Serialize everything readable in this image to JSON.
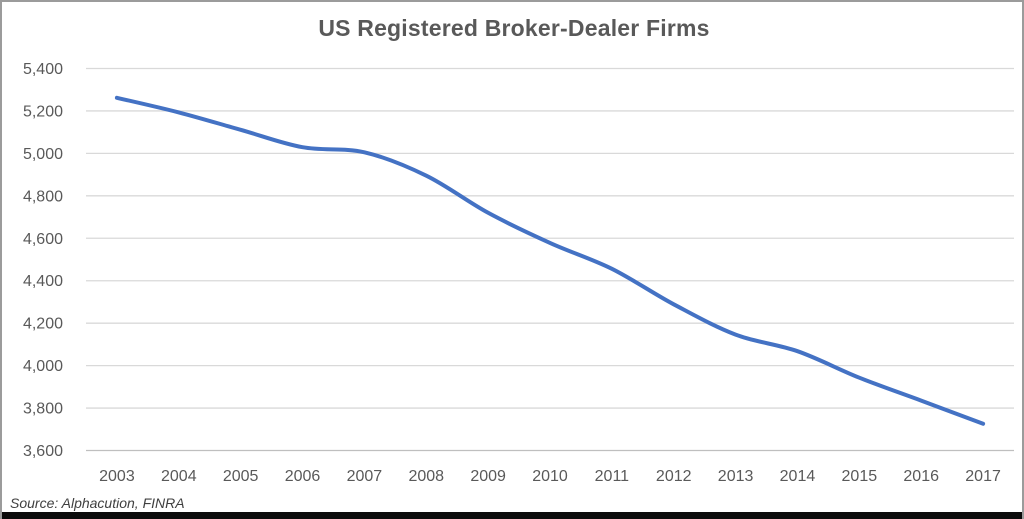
{
  "chart_data": {
    "type": "line",
    "title": "US Registered Broker-Dealer Firms",
    "categories": [
      "2003",
      "2004",
      "2005",
      "2006",
      "2007",
      "2008",
      "2009",
      "2010",
      "2011",
      "2012",
      "2013",
      "2014",
      "2015",
      "2016",
      "2017"
    ],
    "series": [
      {
        "name": "US Registered Broker-Dealer Firms",
        "values": [
          5262,
          5193,
          5111,
          5029,
          5005,
          4895,
          4720,
          4578,
          4456,
          4289,
          4146,
          4068,
          3943,
          3835,
          3726
        ]
      }
    ],
    "xlabel": "",
    "ylabel": "",
    "ylim": [
      3600,
      5400
    ],
    "ytick_interval": 200,
    "ytick_labels": [
      "3,600",
      "3,800",
      "4,000",
      "4,200",
      "4,400",
      "4,600",
      "4,800",
      "5,000",
      "5,200",
      "5,400"
    ],
    "grid": true,
    "legend_position": "none",
    "line_smoothed": true,
    "source": "Source: Alphacution, FINRA",
    "colors": {
      "line": "#4472C4",
      "gridline": "#D9D9D9",
      "axis_line": "#BFBFBF",
      "tick_text": "#595959",
      "title_text": "#595959",
      "source_text": "#3F3F3F",
      "frame_border": "#9B9B9B",
      "bottom_bar": "#0B0B0B",
      "background": "#FFFFFF"
    }
  }
}
